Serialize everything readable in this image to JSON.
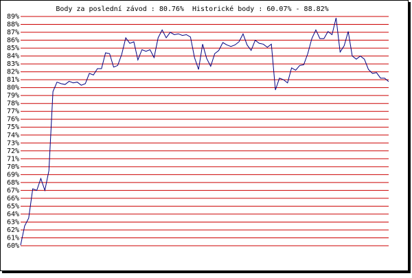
{
  "chart_data": {
    "type": "line",
    "title": "Body za poslední závod : 80.76%  Historické body : 60.07% - 88.82%",
    "categories": [
      null,
      null,
      null,
      null,
      null,
      null,
      null,
      null,
      null,
      null,
      null,
      null,
      null,
      null,
      null,
      null,
      null,
      null,
      null,
      null,
      null,
      null,
      null,
      null,
      null,
      null,
      null,
      null,
      null,
      null,
      null,
      null,
      null,
      null,
      null,
      null,
      null,
      null,
      null,
      null,
      null,
      null,
      null,
      null,
      null,
      null,
      null,
      null,
      null,
      null,
      null,
      null,
      null,
      null,
      null,
      null,
      null,
      null,
      null,
      null,
      null,
      null,
      null,
      null,
      null,
      null,
      null,
      null,
      null,
      null,
      null,
      null,
      null,
      null,
      null,
      null,
      null,
      null,
      null,
      null,
      null,
      null,
      null,
      null,
      null,
      null,
      null,
      null,
      null,
      null,
      null,
      null
    ],
    "values": [
      60.07,
      62.5,
      63.5,
      67.2,
      67,
      68.5,
      67,
      69.5,
      79.5,
      80.7,
      80.5,
      80.4,
      80.8,
      80.6,
      80.7,
      80.3,
      80.5,
      81.8,
      81.6,
      82.4,
      82.4,
      84.4,
      84.3,
      82.6,
      82.8,
      84.2,
      86.3,
      85.6,
      85.8,
      83.5,
      84.8,
      84.6,
      84.8,
      83.8,
      86.3,
      87.3,
      86.3,
      87,
      86.7,
      86.8,
      86.6,
      86.7,
      86.4,
      83.8,
      82.3,
      85.5,
      83.7,
      82.7,
      84.3,
      84.7,
      85.7,
      85.4,
      85.2,
      85.4,
      85.8,
      86.8,
      85.4,
      84.7,
      86,
      85.6,
      85.5,
      85.1,
      85.5,
      79.7,
      81.2,
      81,
      80.6,
      82.5,
      82.2,
      82.8,
      82.9,
      84.3,
      86.2,
      87.3,
      86.2,
      86.2,
      87.1,
      86.7,
      88.82,
      84.5,
      85.3,
      87.1,
      84,
      83.6,
      84,
      83.6,
      82.3,
      81.8,
      81.9,
      81.2,
      81.2,
      80.76
    ],
    "color": "#000080",
    "grid": true,
    "grid_color": "#cc0000",
    "ylim": [
      60,
      89
    ],
    "yticks": [
      {
        "value": 60,
        "label": "60%"
      },
      {
        "value": 61,
        "label": "61%"
      },
      {
        "value": 62,
        "label": "62%"
      },
      {
        "value": 63,
        "label": "63%"
      },
      {
        "value": 64,
        "label": "64%"
      },
      {
        "value": 65,
        "label": "65%"
      },
      {
        "value": 66,
        "label": "66%"
      },
      {
        "value": 67,
        "label": "67%"
      },
      {
        "value": 68,
        "label": "68%"
      },
      {
        "value": 69,
        "label": "69%"
      },
      {
        "value": 70,
        "label": "70%"
      },
      {
        "value": 71,
        "label": "71%"
      },
      {
        "value": 72,
        "label": "72%"
      },
      {
        "value": 73,
        "label": "73%"
      },
      {
        "value": 74,
        "label": "74%"
      },
      {
        "value": 75,
        "label": "75%"
      },
      {
        "value": 76,
        "label": "76%"
      },
      {
        "value": 77,
        "label": "77%"
      },
      {
        "value": 78,
        "label": "78%"
      },
      {
        "value": 79,
        "label": "79%"
      },
      {
        "value": 80,
        "label": "80%"
      },
      {
        "value": 81,
        "label": "81%"
      },
      {
        "value": 82,
        "label": "82%"
      },
      {
        "value": 83,
        "label": "83%"
      },
      {
        "value": 84,
        "label": "84%"
      },
      {
        "value": 85,
        "label": "85%"
      },
      {
        "value": 86,
        "label": "86%"
      },
      {
        "value": 87,
        "label": "87%"
      },
      {
        "value": 88,
        "label": "88%"
      },
      {
        "value": 89,
        "label": "89%"
      }
    ]
  }
}
